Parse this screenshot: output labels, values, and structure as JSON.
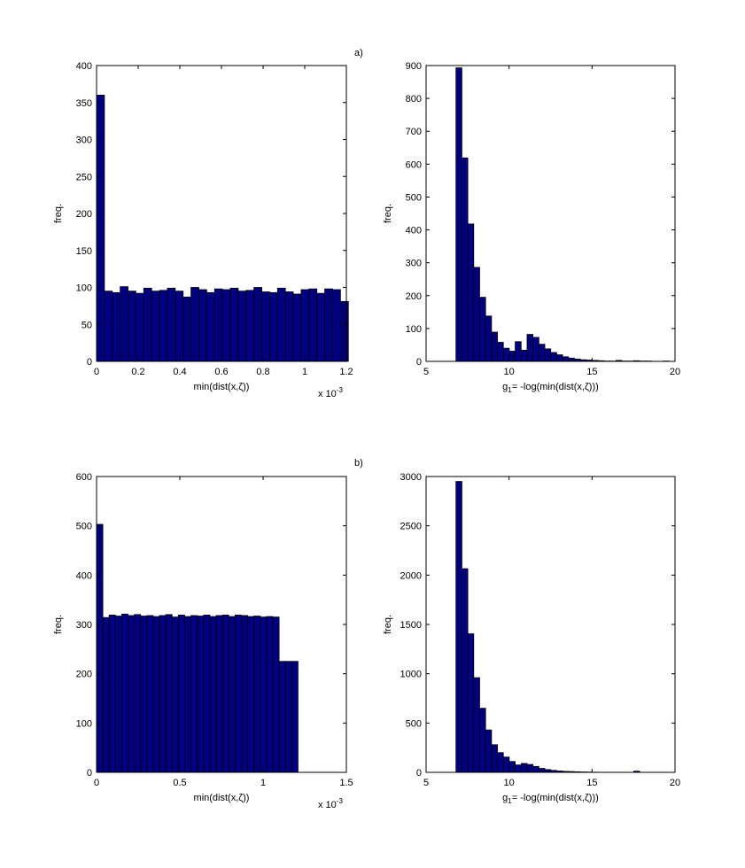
{
  "colors": {
    "bar": "#000080",
    "edge": "#000000",
    "background": "#ffffff"
  },
  "panel_labels": [
    "a)",
    "b)"
  ],
  "chart_data": [
    {
      "type": "bar",
      "panel": "a)",
      "xlabel": "min(dist(x,ζ))",
      "ylabel": "freq.",
      "x_multiplier_text": "x 10",
      "x_multiplier_exp": "-3",
      "xlim": [
        0,
        1.2
      ],
      "ylim": [
        0,
        400
      ],
      "x_ticks": [
        0,
        0.2,
        0.4,
        0.6,
        0.8,
        1,
        1.2
      ],
      "x_tick_labels": [
        "0",
        "0.2",
        "0.4",
        "0.6",
        "0.8",
        "1",
        "1.2"
      ],
      "y_ticks": [
        0,
        50,
        100,
        150,
        200,
        250,
        300,
        350,
        400
      ],
      "y_tick_labels": [
        "0",
        "50",
        "100",
        "150",
        "200",
        "250",
        "300",
        "350",
        "400"
      ],
      "bin_start": 0,
      "bin_width": 0.0378,
      "values": [
        360,
        95,
        93,
        101,
        95,
        92,
        99,
        95,
        96,
        99,
        95,
        87,
        100,
        97,
        93,
        98,
        97,
        99,
        95,
        96,
        100,
        94,
        93,
        99,
        94,
        91,
        97,
        98,
        92,
        98,
        97,
        81
      ]
    },
    {
      "type": "bar",
      "panel": "a)",
      "xlabel_main": "g",
      "xlabel_sub": "1",
      "xlabel_rest": "= -log(min(dist(x,ζ)))",
      "ylabel": "freq.",
      "xlim": [
        5,
        20
      ],
      "ylim": [
        0,
        900
      ],
      "x_ticks": [
        5,
        10,
        15,
        20
      ],
      "x_tick_labels": [
        "5",
        "10",
        "15",
        "20"
      ],
      "y_ticks": [
        0,
        100,
        200,
        300,
        400,
        500,
        600,
        700,
        800,
        900
      ],
      "y_tick_labels": [
        "0",
        "100",
        "200",
        "300",
        "400",
        "500",
        "600",
        "700",
        "800",
        "900"
      ],
      "bin_start": 6.8,
      "bin_width": 0.357,
      "values": [
        893,
        619,
        418,
        286,
        195,
        138,
        89,
        58,
        40,
        31,
        60,
        34,
        82,
        73,
        52,
        38,
        27,
        20,
        14,
        10,
        7,
        5,
        4,
        3,
        2,
        1,
        1,
        3,
        1,
        1,
        2,
        1,
        1,
        0,
        0,
        1
      ]
    },
    {
      "type": "bar",
      "panel": "b)",
      "xlabel": "min(dist(x,ζ))",
      "ylabel": "freq.",
      "x_multiplier_text": "x 10",
      "x_multiplier_exp": "-3",
      "xlim": [
        0,
        1.5
      ],
      "ylim": [
        0,
        600
      ],
      "x_ticks": [
        0,
        0.5,
        1,
        1.5
      ],
      "x_tick_labels": [
        "0",
        "0.5",
        "1",
        "1.5"
      ],
      "y_ticks": [
        0,
        100,
        200,
        300,
        400,
        500,
        600
      ],
      "y_tick_labels": [
        "0",
        "100",
        "200",
        "300",
        "400",
        "500",
        "600"
      ],
      "bin_start": 0,
      "bin_width": 0.0378,
      "values": [
        503,
        314,
        319,
        317,
        321,
        318,
        320,
        317,
        318,
        316,
        318,
        320,
        315,
        319,
        316,
        318,
        317,
        319,
        316,
        318,
        319,
        316,
        319,
        318,
        316,
        317,
        315,
        316,
        315,
        225,
        225,
        225
      ]
    },
    {
      "type": "bar",
      "panel": "b)",
      "xlabel_main": "g",
      "xlabel_sub": "1",
      "xlabel_rest": "= -log(min(dist(x,ζ)))",
      "ylabel": "freq.",
      "xlim": [
        5,
        20
      ],
      "ylim": [
        0,
        3000
      ],
      "x_ticks": [
        5,
        10,
        15,
        20
      ],
      "x_tick_labels": [
        "5",
        "10",
        "15",
        "20"
      ],
      "y_ticks": [
        0,
        500,
        1000,
        1500,
        2000,
        2500,
        3000
      ],
      "y_tick_labels": [
        "0",
        "500",
        "1000",
        "1500",
        "2000",
        "2500",
        "3000"
      ],
      "bin_start": 6.8,
      "bin_width": 0.357,
      "values": [
        2950,
        2065,
        1405,
        960,
        650,
        430,
        280,
        200,
        155,
        110,
        75,
        90,
        80,
        60,
        40,
        28,
        20,
        14,
        10,
        8,
        6,
        4,
        3,
        2,
        1,
        1,
        0,
        1,
        0,
        0,
        12,
        0,
        0,
        0,
        0,
        0
      ]
    }
  ]
}
